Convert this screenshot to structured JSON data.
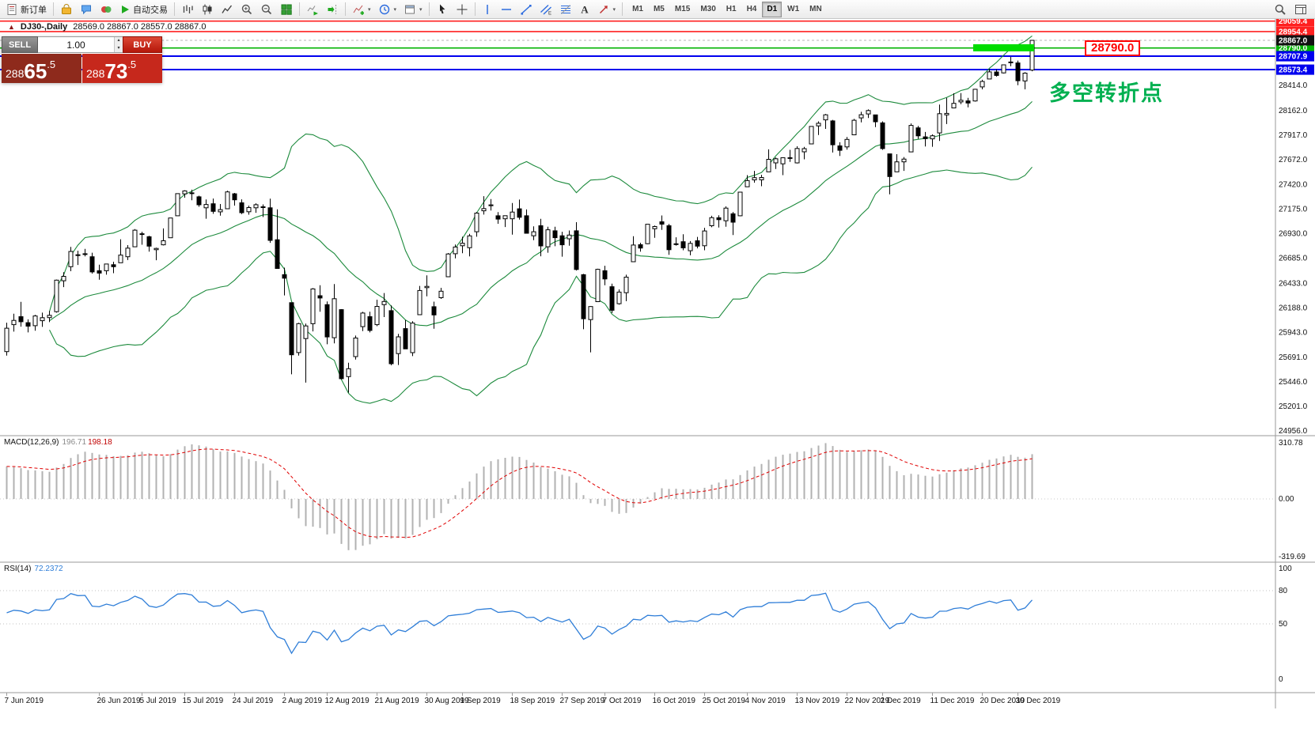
{
  "toolbar": {
    "new_order": "新订单",
    "autotrade": "自动交易",
    "timeframes": [
      "M1",
      "M5",
      "M15",
      "M30",
      "H1",
      "H4",
      "D1",
      "W1",
      "MN"
    ],
    "active_timeframe": "D1"
  },
  "chart": {
    "symbol_title": "DJ30-,Daily",
    "ohlc_line": "28569.0 28867.0 28557.0 28867.0",
    "current_price": "28867.0",
    "annotation_text": "多空转折点",
    "annotation_color": "#00b050",
    "price_label_box": "28790.0",
    "grid_labels": [
      "28414.0",
      "28162.0",
      "27917.0",
      "27672.0",
      "27420.0",
      "27175.0",
      "26930.0",
      "26685.0",
      "26433.0",
      "26188.0",
      "25943.0",
      "25691.0",
      "25446.0",
      "25201.0",
      "24956.0"
    ],
    "levels": [
      {
        "price": 29059.4,
        "label": "29059.4",
        "color": "#ff2020",
        "width": 1.6
      },
      {
        "price": 28954.4,
        "label": "28954.4",
        "color": "#ff2020",
        "width": 1.6
      },
      {
        "price": 28790.0,
        "label": "28790.0",
        "color": "#00b300",
        "width": 1.6
      },
      {
        "price": 28707.9,
        "label": "28707.9",
        "color": "#0000ee",
        "width": 2
      },
      {
        "price": 28573.4,
        "label": "28573.4",
        "color": "#0000ee",
        "width": 2
      }
    ],
    "highlight": {
      "price": 28792,
      "bar_start": 136,
      "bar_end": 144,
      "color": "#00dd00",
      "thickness": 9
    }
  },
  "trade_panel": {
    "sell_label": "SELL",
    "buy_label": "BUY",
    "volume": "1.00",
    "bid": "28865.5",
    "ask": "28873.5",
    "bid_main": "288",
    "bid_big": "65",
    "bid_pip": ".5",
    "ask_main": "288",
    "ask_big": "73",
    "ask_pip": ".5"
  },
  "macd": {
    "name": "MACD(12,26,9)",
    "value_main": "196.71",
    "value_signal": "198.18",
    "params": {
      "fast": 12,
      "slow": 26,
      "signal": 9
    },
    "scale": [
      "310.78",
      "0.00",
      "-319.69"
    ],
    "scale_values": [
      310.78,
      0,
      -319.69
    ]
  },
  "rsi": {
    "name": "RSI(14)",
    "value": "72.2372",
    "period": 14,
    "scale": [
      "100",
      "80",
      "50",
      "0"
    ],
    "scale_values": [
      100,
      80,
      50,
      0
    ],
    "level_lines": [
      80,
      50
    ]
  },
  "dates": [
    {
      "label": "7 Jun 2019",
      "bar": 0
    },
    {
      "label": "26 Jun 2019",
      "bar": 13
    },
    {
      "label": "5 Jul 2019",
      "bar": 19
    },
    {
      "label": "15 Jul 2019",
      "bar": 25
    },
    {
      "label": "24 Jul 2019",
      "bar": 32
    },
    {
      "label": "2 Aug 2019",
      "bar": 39
    },
    {
      "label": "12 Aug 2019",
      "bar": 45
    },
    {
      "label": "21 Aug 2019",
      "bar": 52
    },
    {
      "label": "30 Aug 2019",
      "bar": 59
    },
    {
      "label": "9 Sep 2019",
      "bar": 64
    },
    {
      "label": "18 Sep 2019",
      "bar": 71
    },
    {
      "label": "27 Sep 2019",
      "bar": 78
    },
    {
      "label": "7 Oct 2019",
      "bar": 84
    },
    {
      "label": "16 Oct 2019",
      "bar": 91
    },
    {
      "label": "25 Oct 2019",
      "bar": 98
    },
    {
      "label": "4 Nov 2019",
      "bar": 104
    },
    {
      "label": "13 Nov 2019",
      "bar": 111
    },
    {
      "label": "22 Nov 2019",
      "bar": 118
    },
    {
      "label": "2 Dec 2019",
      "bar": 123
    },
    {
      "label": "11 Dec 2019",
      "bar": 130
    },
    {
      "label": "20 Dec 2019",
      "bar": 137
    },
    {
      "label": "30 Dec 2019",
      "bar": 142
    }
  ],
  "chart_data": {
    "type": "candlestick",
    "symbol": "DJ30-",
    "timeframe": "Daily",
    "overlays": [
      "Bollinger Bands (20,2)"
    ],
    "x_range": [
      "7 Jun 2019",
      "2 Jan 2020"
    ],
    "y_range": [
      24956,
      29080
    ],
    "candles": [
      [
        25750,
        26040,
        25710,
        25984
      ],
      [
        26020,
        26130,
        25950,
        26063
      ],
      [
        26100,
        26248,
        26000,
        26049
      ],
      [
        26040,
        26073,
        25942,
        26005
      ],
      [
        26010,
        26118,
        25960,
        26107
      ],
      [
        26060,
        26140,
        25998,
        26090
      ],
      [
        26090,
        26158,
        26045,
        26113
      ],
      [
        26150,
        26471,
        26140,
        26466
      ],
      [
        26460,
        26546,
        26396,
        26504
      ],
      [
        26600,
        26798,
        26555,
        26753
      ],
      [
        26720,
        26760,
        26618,
        26719
      ],
      [
        26730,
        26779,
        26703,
        26728
      ],
      [
        26700,
        26740,
        26531,
        26548
      ],
      [
        26560,
        26620,
        26470,
        26536
      ],
      [
        26560,
        26628,
        26520,
        26627
      ],
      [
        26620,
        26650,
        26535,
        26600
      ],
      [
        26640,
        26875,
        26640,
        26717
      ],
      [
        26700,
        26816,
        26667,
        26786
      ],
      [
        26800,
        26976,
        26800,
        26966
      ],
      [
        26930,
        26950,
        26820,
        26922
      ],
      [
        26900,
        26910,
        26751,
        26806
      ],
      [
        26770,
        26790,
        26665,
        26783
      ],
      [
        26820,
        26983,
        26813,
        26860
      ],
      [
        26890,
        27088,
        26890,
        27088
      ],
      [
        27110,
        27333,
        27110,
        27332
      ],
      [
        27330,
        27366,
        27291,
        27359
      ],
      [
        27340,
        27371,
        27266,
        27336
      ],
      [
        27300,
        27311,
        27200,
        27220
      ],
      [
        27190,
        27273,
        27081,
        27223
      ],
      [
        27230,
        27283,
        27130,
        27154
      ],
      [
        27150,
        27228,
        27111,
        27172
      ],
      [
        27180,
        27360,
        27180,
        27349
      ],
      [
        27330,
        27339,
        27212,
        27270
      ],
      [
        27240,
        27275,
        27127,
        27141
      ],
      [
        27150,
        27212,
        27121,
        27192
      ],
      [
        27190,
        27235,
        27140,
        27221
      ],
      [
        27200,
        27224,
        27097,
        27198
      ],
      [
        27190,
        27281,
        26839,
        26864
      ],
      [
        26870,
        27175,
        26583,
        26583
      ],
      [
        26520,
        26591,
        26313,
        26485
      ],
      [
        26240,
        26240,
        25523,
        25718
      ],
      [
        25740,
        26038,
        25710,
        26030
      ],
      [
        25880,
        26030,
        25440,
        26007
      ],
      [
        26030,
        26386,
        25953,
        26378
      ],
      [
        26310,
        26414,
        26150,
        26287
      ],
      [
        26220,
        26252,
        25824,
        25897
      ],
      [
        25890,
        26427,
        25832,
        26280
      ],
      [
        26170,
        26175,
        25471,
        25479
      ],
      [
        25500,
        25639,
        25339,
        25579
      ],
      [
        25700,
        25911,
        25670,
        25886
      ],
      [
        26000,
        26148,
        25955,
        26136
      ],
      [
        26100,
        26150,
        25942,
        25962
      ],
      [
        26020,
        26270,
        26005,
        26203
      ],
      [
        26220,
        26337,
        26096,
        26252
      ],
      [
        26160,
        26212,
        25613,
        25629
      ],
      [
        25730,
        25928,
        25616,
        25898
      ],
      [
        25980,
        26066,
        25783,
        25777
      ],
      [
        25740,
        26055,
        25705,
        26036
      ],
      [
        26120,
        26408,
        26120,
        26362
      ],
      [
        26390,
        26514,
        26303,
        26403
      ],
      [
        26200,
        26250,
        25979,
        26118
      ],
      [
        26290,
        26389,
        26278,
        26355
      ],
      [
        26500,
        26737,
        26500,
        26728
      ],
      [
        26730,
        26822,
        26683,
        26797
      ],
      [
        26810,
        26900,
        26735,
        26835
      ],
      [
        26790,
        26929,
        26704,
        26909
      ],
      [
        26950,
        27147,
        26900,
        27137
      ],
      [
        27160,
        27306,
        27122,
        27182
      ],
      [
        27210,
        27277,
        27163,
        27219
      ],
      [
        27110,
        27147,
        27030,
        27077
      ],
      [
        27080,
        27111,
        26998,
        27111
      ],
      [
        27080,
        27238,
        26922,
        27147
      ],
      [
        27180,
        27272,
        27071,
        27095
      ],
      [
        27110,
        27173,
        26932,
        26935
      ],
      [
        26910,
        27004,
        26866,
        26950
      ],
      [
        27010,
        27079,
        26705,
        26808
      ],
      [
        26800,
        27000,
        26740,
        26970
      ],
      [
        26960,
        27000,
        26805,
        26891
      ],
      [
        26910,
        26950,
        26701,
        26820
      ],
      [
        26880,
        26963,
        26810,
        26917
      ],
      [
        26960,
        27046,
        26562,
        26573
      ],
      [
        26520,
        26528,
        25974,
        26079
      ],
      [
        26070,
        26205,
        25743,
        26201
      ],
      [
        26250,
        26580,
        26250,
        26574
      ],
      [
        26560,
        26610,
        26415,
        26478
      ],
      [
        26400,
        26430,
        26136,
        26164
      ],
      [
        26230,
        26373,
        26220,
        26346
      ],
      [
        26340,
        26520,
        26255,
        26496
      ],
      [
        26650,
        26905,
        26650,
        26817
      ],
      [
        26820,
        26840,
        26751,
        26787
      ],
      [
        26830,
        27025,
        26827,
        27025
      ],
      [
        26980,
        27012,
        26889,
        27002
      ],
      [
        27050,
        27113,
        26968,
        27026
      ],
      [
        27010,
        27028,
        26719,
        26770
      ],
      [
        26830,
        26895,
        26812,
        26828
      ],
      [
        26850,
        26925,
        26765,
        26788
      ],
      [
        26760,
        26857,
        26714,
        26834
      ],
      [
        26860,
        26899,
        26784,
        26806
      ],
      [
        26810,
        26990,
        26765,
        26958
      ],
      [
        27010,
        27110,
        26995,
        27091
      ],
      [
        27090,
        27115,
        26992,
        27071
      ],
      [
        27060,
        27204,
        27000,
        27187
      ],
      [
        27130,
        27148,
        26918,
        27046
      ],
      [
        27110,
        27347,
        27105,
        27347
      ],
      [
        27400,
        27517,
        27400,
        27462
      ],
      [
        27470,
        27560,
        27442,
        27492
      ],
      [
        27470,
        27520,
        27406,
        27493
      ],
      [
        27550,
        27775,
        27550,
        27675
      ],
      [
        27640,
        27694,
        27578,
        27681
      ],
      [
        27630,
        27694,
        27517,
        27691
      ],
      [
        27690,
        27770,
        27650,
        27692
      ],
      [
        27640,
        27806,
        27634,
        27784
      ],
      [
        27750,
        27800,
        27675,
        27782
      ],
      [
        27830,
        28004,
        27830,
        28005
      ],
      [
        28010,
        28055,
        27918,
        28036
      ],
      [
        28070,
        28130,
        27980,
        28121
      ],
      [
        28060,
        28070,
        27743,
        27821
      ],
      [
        27810,
        27846,
        27709,
        27766
      ],
      [
        27800,
        27899,
        27773,
        27875
      ],
      [
        27920,
        28080,
        27920,
        28066
      ],
      [
        28090,
        28151,
        28045,
        28122
      ],
      [
        28130,
        28175,
        28089,
        28164
      ],
      [
        28120,
        28120,
        27998,
        28051
      ],
      [
        28040,
        28055,
        27770,
        27783
      ],
      [
        27730,
        27730,
        27325,
        27503
      ],
      [
        27550,
        27727,
        27550,
        27650
      ],
      [
        27650,
        27698,
        27560,
        27678
      ],
      [
        27750,
        28035,
        27750,
        28015
      ],
      [
        27990,
        28010,
        27880,
        27910
      ],
      [
        27900,
        27949,
        27804,
        27882
      ],
      [
        27880,
        27925,
        27801,
        27911
      ],
      [
        27940,
        28224,
        27859,
        28132
      ],
      [
        28120,
        28290,
        28028,
        28135
      ],
      [
        28190,
        28337,
        28190,
        28236
      ],
      [
        28250,
        28338,
        28228,
        28267
      ],
      [
        28260,
        28291,
        28196,
        28239
      ],
      [
        28260,
        28381,
        28253,
        28377
      ],
      [
        28400,
        28472,
        28376,
        28455
      ],
      [
        28480,
        28580,
        28480,
        28551
      ],
      [
        28550,
        28576,
        28503,
        28515
      ],
      [
        28540,
        28624,
        28535,
        28621
      ],
      [
        28650,
        28701,
        28608,
        28645
      ],
      [
        28640,
        28664,
        28418,
        28462
      ],
      [
        28460,
        28547,
        28376,
        28538
      ],
      [
        28569,
        28867,
        28557,
        28867
      ]
    ]
  }
}
